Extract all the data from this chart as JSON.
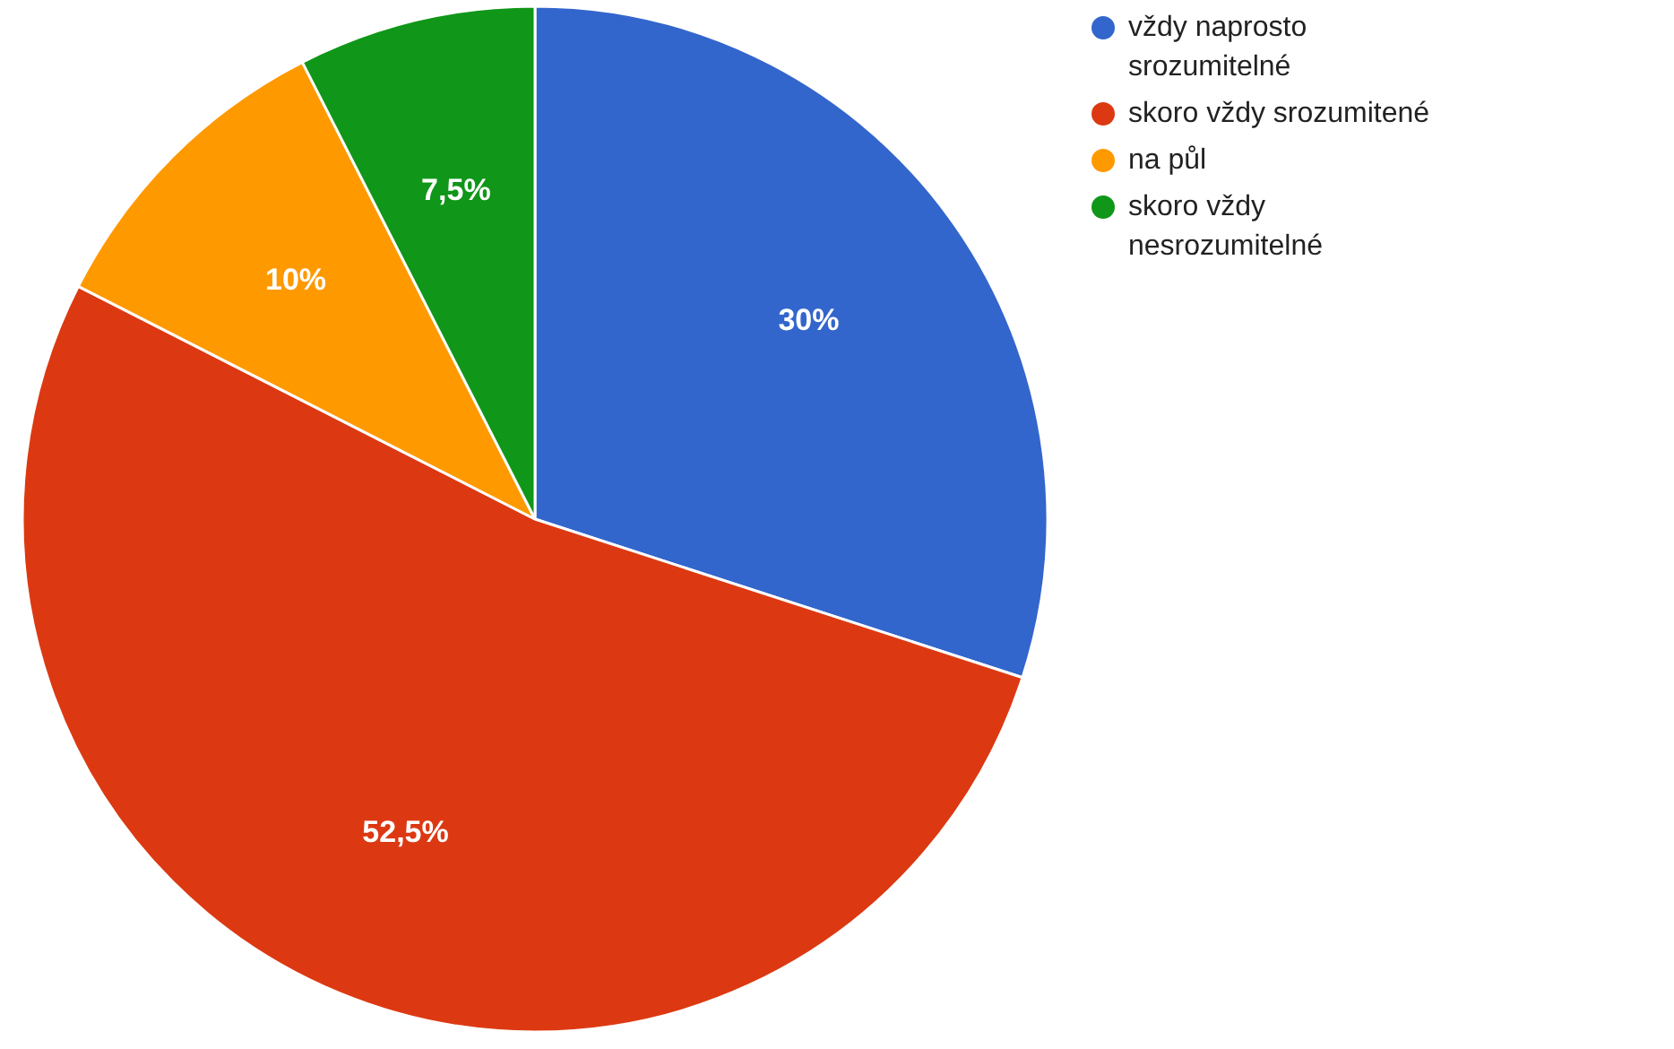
{
  "chart_data": {
    "type": "pie",
    "categories": [
      "vždy naprosto srozumitelné",
      "skoro vždy srozumitené",
      "na půl",
      "skoro vždy nesrozumitelné"
    ],
    "values": [
      30,
      52.5,
      10,
      7.5
    ],
    "value_labels": [
      "30%",
      "52,5%",
      "10%",
      "7,5%"
    ],
    "colors": [
      "#3366cc",
      "#dc3912",
      "#ff9900",
      "#109618"
    ],
    "legend": "right"
  }
}
